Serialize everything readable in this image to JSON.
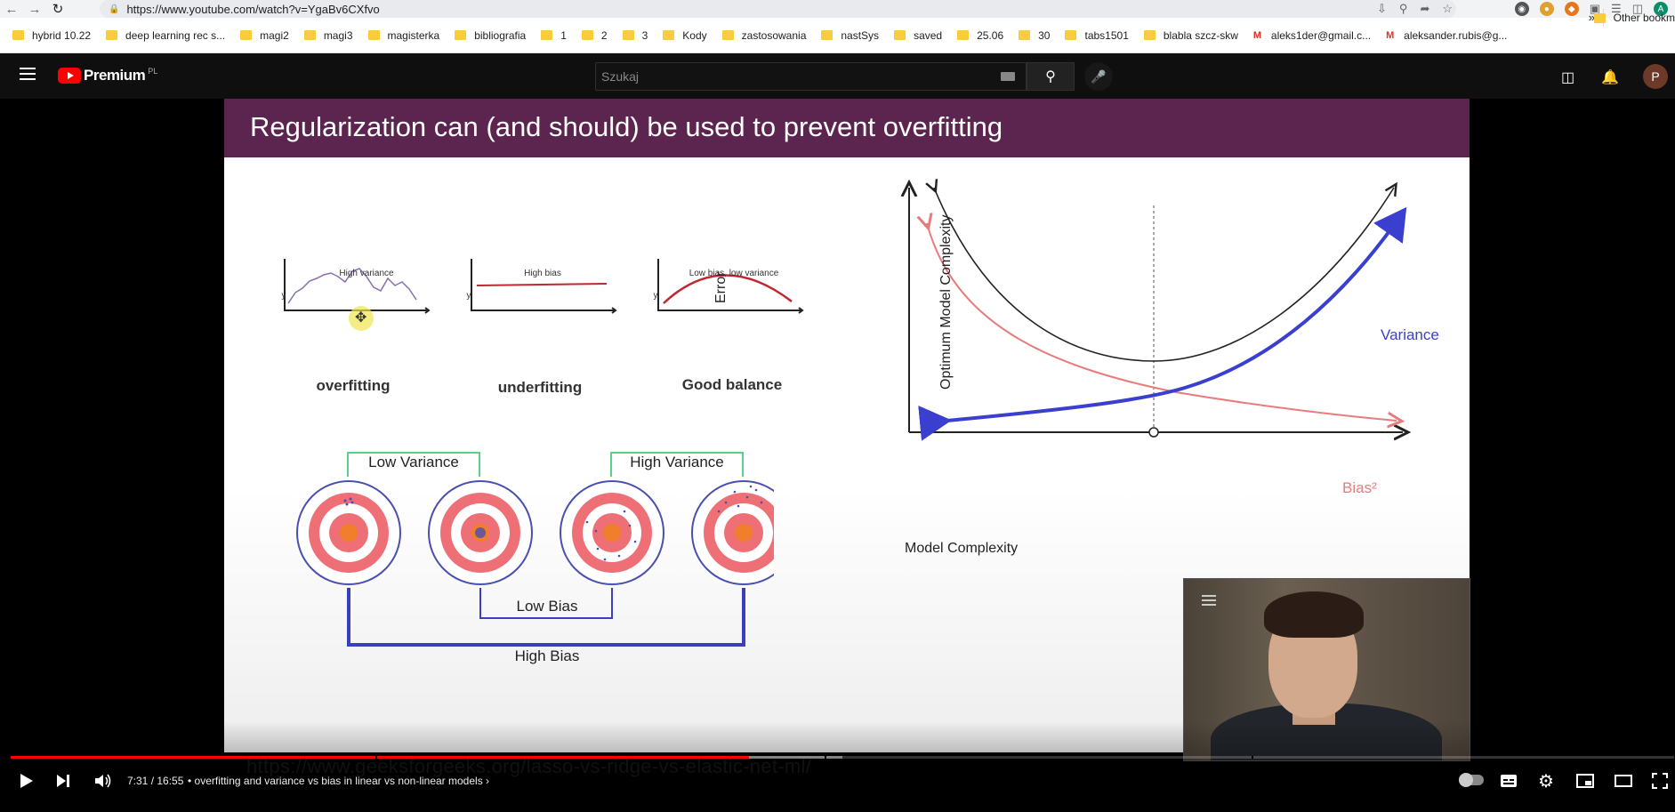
{
  "browser": {
    "url": "https://www.youtube.com/watch?v=YgaBv6CXfvo",
    "bookmarks": [
      {
        "label": "hybrid 10.22",
        "type": "folder"
      },
      {
        "label": "deep learning rec s...",
        "type": "folder"
      },
      {
        "label": "magi2",
        "type": "folder"
      },
      {
        "label": "magi3",
        "type": "folder"
      },
      {
        "label": "magisterka",
        "type": "folder"
      },
      {
        "label": "bibliografia",
        "type": "folder"
      },
      {
        "label": "1",
        "type": "folder"
      },
      {
        "label": "2",
        "type": "folder"
      },
      {
        "label": "3",
        "type": "folder"
      },
      {
        "label": "Kody",
        "type": "folder"
      },
      {
        "label": "zastosowania",
        "type": "folder"
      },
      {
        "label": "nastSys",
        "type": "folder"
      },
      {
        "label": "saved",
        "type": "folder"
      },
      {
        "label": "25.06",
        "type": "folder"
      },
      {
        "label": "30",
        "type": "folder"
      },
      {
        "label": "tabs1501",
        "type": "folder"
      },
      {
        "label": "blabla szcz-skw",
        "type": "folder"
      },
      {
        "label": "aleks1der@gmail.c...",
        "type": "gmail"
      },
      {
        "label": "aleksander.rubis@g...",
        "type": "gmail"
      }
    ],
    "more_bookmarks": "»",
    "other_bookmarks": "Other bookm",
    "profile_initial": "A"
  },
  "youtube": {
    "brand": "Premium",
    "region": "PL",
    "search_placeholder": "Szukaj",
    "avatar_initial": "P"
  },
  "slide": {
    "title": "Regularization can (and should) be used to prevent overfitting",
    "mini_charts": [
      {
        "title": "High variance",
        "label": "overfitting"
      },
      {
        "title": "High bias",
        "label": "underfitting"
      },
      {
        "title": "Low bias, low variance",
        "label": "Good balance"
      }
    ],
    "mini_axis_x": "x",
    "mini_axis_y": "y",
    "targets": {
      "low_variance": "Low Variance",
      "high_variance": "High Variance",
      "low_bias": "Low Bias",
      "high_bias": "High Bias"
    },
    "tradeoff": {
      "y_label": "Error",
      "x_label": "Model Complexity",
      "optimum_label": "Optimum Model Complexity",
      "variance_label": "Variance",
      "bias_label": "Bias²"
    },
    "source_url": "https://www.geeksforgeeks.org/lasso-vs-ridge-vs-elastic-net-ml/"
  },
  "player": {
    "time": "7:31 / 16:55",
    "chapter": "• overfitting and variance vs bias in linear vs non-linear models",
    "chapter_chevron": "›",
    "progress_played": 0.444,
    "progress_loaded": 0.5
  },
  "colors": {
    "slide_title_bar": "#5b2550",
    "variance_curve": "#3a3fd0",
    "bias_curve": "#e87b7b",
    "total_error": "#222222",
    "youtube_red": "#ff0000"
  }
}
